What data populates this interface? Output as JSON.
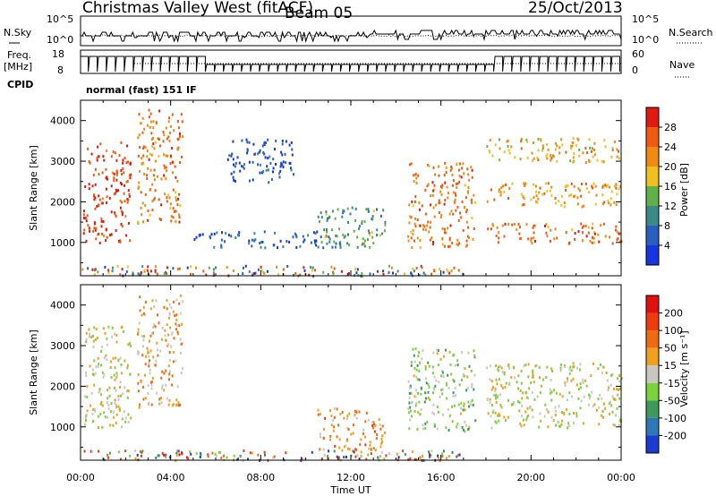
{
  "header": {
    "station_title": "Christmas Valley West (fitACF)",
    "beam": "Beam 05",
    "date": "25/Oct/2013"
  },
  "top_panels": {
    "nsky_label": "N.Sky",
    "nsearch_label": "N.Search",
    "freq_label_1": "Freq.",
    "freq_label_2": "[MHz]",
    "nave_label": "Nave",
    "cpid_label": "CPID",
    "cpid_value": "normal (fast) 151 IF",
    "noise_left_ticks": [
      "10^5",
      "10^0"
    ],
    "noise_right_ticks": [
      "10^5",
      "10^0"
    ],
    "freq_left_ticks": [
      "18",
      "8"
    ],
    "nave_right_ticks": [
      "60",
      "0"
    ]
  },
  "x_axis": {
    "label": "Time UT",
    "ticks": [
      "00:00",
      "04:00",
      "08:00",
      "12:00",
      "16:00",
      "20:00",
      "00:00"
    ]
  },
  "colorbars": {
    "power": {
      "label": "Power [dB]",
      "ticks": [
        "4",
        "8",
        "12",
        "16",
        "20",
        "24",
        "28"
      ],
      "colors": [
        "#1535e0",
        "#2a5fbf",
        "#3a8a86",
        "#62b04a",
        "#f0c020",
        "#f08a10",
        "#f05a10",
        "#e01a10"
      ]
    },
    "velocity": {
      "label": "Velocity [m s⁻¹]",
      "ticks": [
        "200",
        "100",
        "50",
        "15",
        "-15",
        "-50",
        "-100",
        "-200"
      ],
      "colors": [
        "#1a3ad0",
        "#2e78b8",
        "#3e9a5a",
        "#7cd23a",
        "#c8c8c0",
        "#f0a020",
        "#f06a10",
        "#f03a10",
        "#e01010"
      ]
    }
  },
  "chart_data": [
    {
      "type": "heatmap",
      "title": "Power",
      "xlabel": "",
      "ylabel": "Slant Range [km]",
      "x_range_hours": [
        0,
        24
      ],
      "ylim_km": [
        180,
        4500
      ],
      "y_ticks": [
        1000,
        2000,
        3000,
        4000
      ],
      "colorbar_label": "Power [dB]",
      "colorbar_range_db": [
        0,
        32
      ],
      "features": [
        {
          "x": [
            0.1,
            2.2
          ],
          "y": [
            1000,
            3500
          ],
          "value_db": 28
        },
        {
          "x": [
            2.5,
            4.5
          ],
          "y": [
            1500,
            4300
          ],
          "value_db": 24
        },
        {
          "x": [
            6.5,
            9.5
          ],
          "y": [
            2500,
            3600
          ],
          "value_db": 4
        },
        {
          "x": [
            5.0,
            11.5
          ],
          "y": [
            900,
            1300
          ],
          "value_db": 6
        },
        {
          "x": [
            10.5,
            13.5
          ],
          "y": [
            900,
            1900
          ],
          "value_db": 12
        },
        {
          "x": [
            12.5,
            13.0
          ],
          "y": [
            1000,
            1300
          ],
          "value_db": 20
        },
        {
          "x": [
            14.5,
            17.5
          ],
          "y": [
            900,
            3000
          ],
          "value_db": 24
        },
        {
          "x": [
            18.0,
            24.0
          ],
          "y": [
            1000,
            1500
          ],
          "value_db": 24
        },
        {
          "x": [
            18.0,
            24.0
          ],
          "y": [
            1900,
            2500
          ],
          "value_db": 22
        },
        {
          "x": [
            18.0,
            24.0
          ],
          "y": [
            3000,
            3600
          ],
          "value_db": 20
        }
      ]
    },
    {
      "type": "heatmap",
      "title": "Velocity",
      "xlabel": "Time UT",
      "ylabel": "Slant Range [km]",
      "x_range_hours": [
        0,
        24
      ],
      "ylim_km": [
        180,
        4500
      ],
      "y_ticks": [
        1000,
        2000,
        3000,
        4000
      ],
      "colorbar_label": "Velocity [m s⁻¹]",
      "colorbar_range_ms": [
        -200,
        200
      ],
      "features": [
        {
          "x": [
            0.1,
            2.2
          ],
          "y": [
            1000,
            3500
          ],
          "value_ms": 0
        },
        {
          "x": [
            2.5,
            4.5
          ],
          "y": [
            1500,
            4300
          ],
          "value_ms": -40
        },
        {
          "x": [
            10.5,
            13.5
          ],
          "y": [
            400,
            1500
          ],
          "value_ms": -60
        },
        {
          "x": [
            14.5,
            17.5
          ],
          "y": [
            900,
            3000
          ],
          "value_ms": 30
        },
        {
          "x": [
            18.0,
            24.0
          ],
          "y": [
            1000,
            2600
          ],
          "value_ms": 0
        }
      ]
    }
  ]
}
